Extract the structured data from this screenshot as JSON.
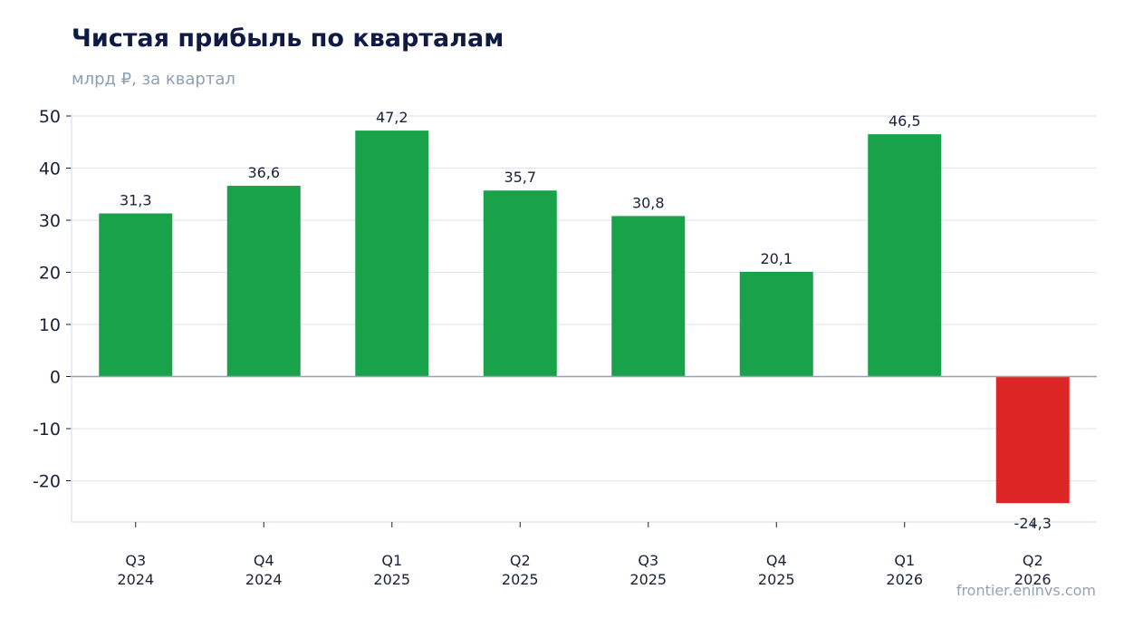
{
  "title": "Чистая прибыль по кварталам",
  "subtitle": "млрд ₽, за квартал",
  "watermark": "frontier.eninvs.com",
  "colors": {
    "positive": "#18a34a",
    "negative": "#dc2626",
    "grid": "#e2e8f0",
    "zero_line": "#94a3b8",
    "axis": "#e2e8f0",
    "title": "#0f1b45",
    "subtitle": "#8e9fb2",
    "text": "#1a2238"
  },
  "chart_data": {
    "type": "bar",
    "title": "Чистая прибыль по кварталам",
    "subtitle": "млрд ₽, за квартал",
    "categories": [
      [
        "Q3",
        "2024"
      ],
      [
        "Q4",
        "2024"
      ],
      [
        "Q1",
        "2025"
      ],
      [
        "Q2",
        "2025"
      ],
      [
        "Q3",
        "2025"
      ],
      [
        "Q4",
        "2025"
      ],
      [
        "Q1",
        "2026"
      ],
      [
        "Q2",
        "2026"
      ]
    ],
    "values": [
      31.3,
      36.6,
      47.2,
      35.7,
      30.8,
      20.1,
      46.5,
      -24.3
    ],
    "value_labels": [
      "31,3",
      "36,6",
      "47,2",
      "35,7",
      "30,8",
      "20,1",
      "46,5",
      "-24,3"
    ],
    "yticks": [
      50,
      40,
      30,
      20,
      10,
      0,
      -10,
      -20
    ],
    "ytick_labels": [
      "50",
      "40",
      "30",
      "20",
      "10",
      "0",
      "-10",
      "-20"
    ],
    "ylim": [
      -28,
      50
    ],
    "xlabel": "",
    "ylabel": "",
    "grid": true,
    "legend": "none"
  }
}
